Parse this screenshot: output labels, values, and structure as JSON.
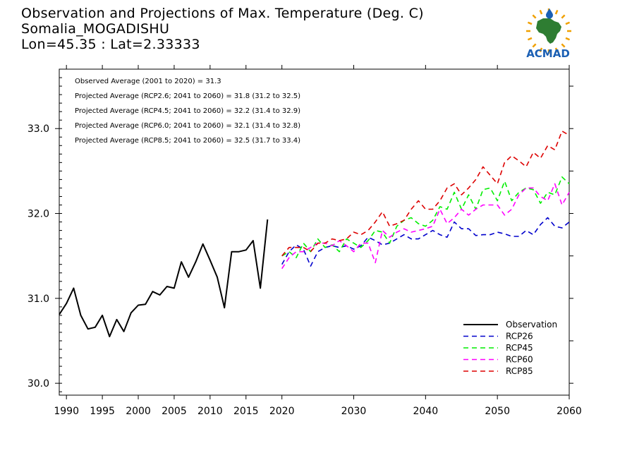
{
  "title_lines": [
    "Observation and Projections of Max. Temperature (Deg. C)",
    "Somalia_MOGADISHU",
    "Lon=45.35 : Lat=2.33333"
  ],
  "logo_text": "ACMAD",
  "colors": {
    "observation": "#000000",
    "rcp26": "#0000cc",
    "rcp45": "#00ee00",
    "rcp60": "#ff00ff",
    "rcp85": "#dd0000",
    "logo_blue": "#1a5fb4",
    "logo_green": "#2e7d32",
    "logo_sun": "#f0a000"
  },
  "annotations": [
    "Observed Average (2001 to 2020) = 31.3",
    "Projected Average (RCP2.6; 2041 to 2060) = 31.8 (31.2 to 32.5)",
    "Projected Average (RCP4.5; 2041 to 2060) = 32.2 (31.4 to 32.9)",
    "Projected Average (RCP6.0; 2041 to 2060) = 32.1 (31.4 to 32.8)",
    "Projected Average (RCP8.5; 2041 to 2060) = 32.5 (31.7 to 33.4)"
  ],
  "chart_data": {
    "type": "line",
    "title": "Observation and Projections of Max. Temperature (Deg. C)",
    "xlim": [
      1989,
      2060
    ],
    "ylim": [
      29.86,
      31.05,
      33.7
    ],
    "ylim_note": "",
    "yrange": [
      29.86,
      33.7
    ],
    "x_ticks": [
      1990,
      1995,
      2000,
      2005,
      2010,
      2015,
      2020,
      2030,
      2040,
      2050,
      2060
    ],
    "y_ticks": [
      30.0,
      31.0,
      32.0,
      33.0
    ],
    "y_tick_labels": [
      "30.0",
      "31.0",
      "32.0",
      "33.0"
    ],
    "grid": false,
    "legend_position": "bottom-right",
    "series": [
      {
        "name": "Observation",
        "key": "obs",
        "dashed": false,
        "points": [
          [
            1989,
            30.81
          ],
          [
            1990,
            30.94
          ],
          [
            1991,
            31.12
          ],
          [
            1992,
            30.8
          ],
          [
            1993,
            30.64
          ],
          [
            1994,
            30.66
          ],
          [
            1995,
            30.8
          ],
          [
            1996,
            30.55
          ],
          [
            1997,
            30.75
          ],
          [
            1998,
            30.61
          ],
          [
            1999,
            30.83
          ],
          [
            2000,
            30.92
          ],
          [
            2001,
            30.93
          ],
          [
            2002,
            31.08
          ],
          [
            2003,
            31.04
          ],
          [
            2004,
            31.14
          ],
          [
            2005,
            31.12
          ],
          [
            2006,
            31.43
          ],
          [
            2007,
            31.25
          ],
          [
            2008,
            31.43
          ],
          [
            2009,
            31.64
          ],
          [
            2010,
            31.45
          ],
          [
            2011,
            31.25
          ],
          [
            2012,
            30.89
          ],
          [
            2013,
            31.55
          ],
          [
            2014,
            31.55
          ],
          [
            2015,
            31.57
          ],
          [
            2016,
            31.68
          ],
          [
            2017,
            31.12
          ],
          [
            2018,
            31.93
          ]
        ]
      },
      {
        "name": "RCP26",
        "key": "rcp26",
        "dashed": true,
        "points": [
          [
            2020,
            31.4
          ],
          [
            2021,
            31.55
          ],
          [
            2022,
            31.63
          ],
          [
            2023,
            31.58
          ],
          [
            2024,
            31.38
          ],
          [
            2025,
            31.55
          ],
          [
            2026,
            31.6
          ],
          [
            2027,
            31.62
          ],
          [
            2028,
            31.6
          ],
          [
            2029,
            31.62
          ],
          [
            2030,
            31.58
          ],
          [
            2031,
            31.62
          ],
          [
            2032,
            31.72
          ],
          [
            2033,
            31.68
          ],
          [
            2034,
            31.63
          ],
          [
            2035,
            31.65
          ],
          [
            2036,
            31.7
          ],
          [
            2037,
            31.75
          ],
          [
            2038,
            31.7
          ],
          [
            2039,
            31.7
          ],
          [
            2040,
            31.75
          ],
          [
            2041,
            31.8
          ],
          [
            2042,
            31.75
          ],
          [
            2043,
            31.72
          ],
          [
            2044,
            31.9
          ],
          [
            2045,
            31.82
          ],
          [
            2046,
            31.82
          ],
          [
            2047,
            31.74
          ],
          [
            2048,
            31.75
          ],
          [
            2049,
            31.75
          ],
          [
            2050,
            31.78
          ],
          [
            2051,
            31.76
          ],
          [
            2052,
            31.73
          ],
          [
            2053,
            31.73
          ],
          [
            2054,
            31.8
          ],
          [
            2055,
            31.75
          ],
          [
            2056,
            31.87
          ],
          [
            2057,
            31.95
          ],
          [
            2058,
            31.85
          ],
          [
            2059,
            31.83
          ],
          [
            2060,
            31.9
          ]
        ]
      },
      {
        "name": "RCP45",
        "key": "rcp45",
        "dashed": true,
        "points": [
          [
            2020,
            31.5
          ],
          [
            2021,
            31.55
          ],
          [
            2022,
            31.48
          ],
          [
            2023,
            31.65
          ],
          [
            2024,
            31.55
          ],
          [
            2025,
            31.7
          ],
          [
            2026,
            31.6
          ],
          [
            2027,
            31.63
          ],
          [
            2028,
            31.55
          ],
          [
            2029,
            31.7
          ],
          [
            2030,
            31.65
          ],
          [
            2031,
            31.6
          ],
          [
            2032,
            31.68
          ],
          [
            2033,
            31.8
          ],
          [
            2034,
            31.78
          ],
          [
            2035,
            31.65
          ],
          [
            2036,
            31.85
          ],
          [
            2037,
            31.92
          ],
          [
            2038,
            31.95
          ],
          [
            2039,
            31.88
          ],
          [
            2040,
            31.85
          ],
          [
            2041,
            31.92
          ],
          [
            2042,
            32.08
          ],
          [
            2043,
            32.05
          ],
          [
            2044,
            32.25
          ],
          [
            2045,
            32.05
          ],
          [
            2046,
            32.22
          ],
          [
            2047,
            32.05
          ],
          [
            2048,
            32.28
          ],
          [
            2049,
            32.3
          ],
          [
            2050,
            32.15
          ],
          [
            2051,
            32.38
          ],
          [
            2052,
            32.15
          ],
          [
            2053,
            32.25
          ],
          [
            2054,
            32.3
          ],
          [
            2055,
            32.28
          ],
          [
            2056,
            32.12
          ],
          [
            2057,
            32.25
          ],
          [
            2058,
            32.22
          ],
          [
            2059,
            32.43
          ],
          [
            2060,
            32.35
          ]
        ]
      },
      {
        "name": "RCP60",
        "key": "rcp60",
        "dashed": true,
        "points": [
          [
            2020,
            31.35
          ],
          [
            2021,
            31.48
          ],
          [
            2022,
            31.55
          ],
          [
            2023,
            31.55
          ],
          [
            2024,
            31.6
          ],
          [
            2025,
            31.65
          ],
          [
            2026,
            31.65
          ],
          [
            2027,
            31.62
          ],
          [
            2028,
            31.68
          ],
          [
            2029,
            31.62
          ],
          [
            2030,
            31.55
          ],
          [
            2031,
            31.65
          ],
          [
            2032,
            31.65
          ],
          [
            2033,
            31.42
          ],
          [
            2034,
            31.8
          ],
          [
            2035,
            31.72
          ],
          [
            2036,
            31.78
          ],
          [
            2037,
            31.82
          ],
          [
            2038,
            31.78
          ],
          [
            2039,
            31.8
          ],
          [
            2040,
            31.82
          ],
          [
            2041,
            31.85
          ],
          [
            2042,
            32.05
          ],
          [
            2043,
            31.88
          ],
          [
            2044,
            31.95
          ],
          [
            2045,
            32.05
          ],
          [
            2046,
            31.98
          ],
          [
            2047,
            32.05
          ],
          [
            2048,
            32.1
          ],
          [
            2049,
            32.1
          ],
          [
            2050,
            32.1
          ],
          [
            2051,
            31.98
          ],
          [
            2052,
            32.05
          ],
          [
            2053,
            32.22
          ],
          [
            2054,
            32.3
          ],
          [
            2055,
            32.3
          ],
          [
            2056,
            32.2
          ],
          [
            2057,
            32.15
          ],
          [
            2058,
            32.35
          ],
          [
            2059,
            32.1
          ],
          [
            2060,
            32.25
          ]
        ]
      },
      {
        "name": "RCP85",
        "key": "rcp85",
        "dashed": true,
        "points": [
          [
            2020,
            31.5
          ],
          [
            2021,
            31.6
          ],
          [
            2022,
            31.6
          ],
          [
            2023,
            31.6
          ],
          [
            2024,
            31.55
          ],
          [
            2025,
            31.65
          ],
          [
            2026,
            31.65
          ],
          [
            2027,
            31.7
          ],
          [
            2028,
            31.68
          ],
          [
            2029,
            31.7
          ],
          [
            2030,
            31.78
          ],
          [
            2031,
            31.75
          ],
          [
            2032,
            31.8
          ],
          [
            2033,
            31.9
          ],
          [
            2034,
            32.02
          ],
          [
            2035,
            31.85
          ],
          [
            2036,
            31.88
          ],
          [
            2037,
            31.92
          ],
          [
            2038,
            32.05
          ],
          [
            2039,
            32.15
          ],
          [
            2040,
            32.05
          ],
          [
            2041,
            32.05
          ],
          [
            2042,
            32.15
          ],
          [
            2043,
            32.3
          ],
          [
            2044,
            32.35
          ],
          [
            2045,
            32.22
          ],
          [
            2046,
            32.3
          ],
          [
            2047,
            32.4
          ],
          [
            2048,
            32.55
          ],
          [
            2049,
            32.45
          ],
          [
            2050,
            32.35
          ],
          [
            2051,
            32.6
          ],
          [
            2052,
            32.68
          ],
          [
            2053,
            32.62
          ],
          [
            2054,
            32.55
          ],
          [
            2055,
            32.72
          ],
          [
            2056,
            32.65
          ],
          [
            2057,
            32.8
          ],
          [
            2058,
            32.75
          ],
          [
            2059,
            32.97
          ],
          [
            2060,
            32.92
          ]
        ]
      }
    ]
  }
}
